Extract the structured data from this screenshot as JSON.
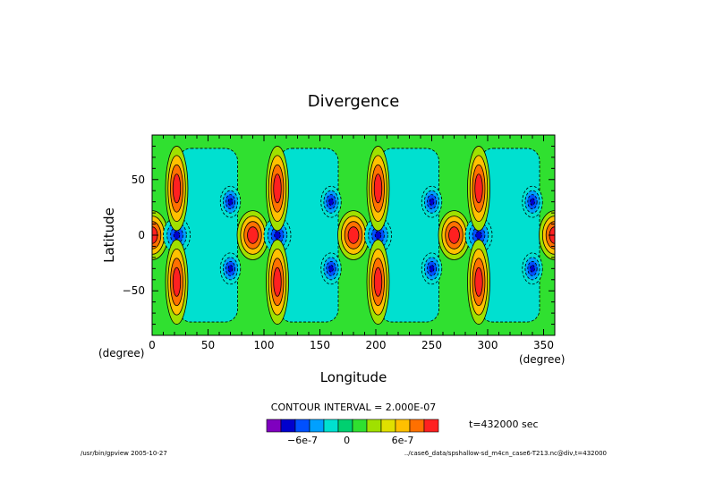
{
  "chart_data": {
    "type": "heatmap",
    "title": "Divergence",
    "xlabel": "Longitude",
    "ylabel": "Latitude",
    "x_unit_left": "(degree)",
    "x_unit_right": "(degree)",
    "xlim": [
      0,
      360
    ],
    "ylim": [
      -90,
      90
    ],
    "xticks": [
      "0",
      "50",
      "100",
      "150",
      "200",
      "250",
      "300",
      "350"
    ],
    "yticks": [
      "50",
      "0",
      "−50"
    ],
    "contour_interval_text": "CONTOUR INTERVAL = 2.000E-07",
    "time_text": "t=432000 sec",
    "colorbar": {
      "tick_labels": [
        "−6e-7",
        "0",
        "6e-7"
      ],
      "colors": [
        "#7f00bf",
        "#0000cd",
        "#0050ff",
        "#00a0ff",
        "#00e0d0",
        "#00d070",
        "#30e030",
        "#a0e000",
        "#e0e000",
        "#ffc000",
        "#ff7000",
        "#ff2020"
      ]
    },
    "field_colors": {
      "background": "#30e030",
      "positive_strong": "#ff2020",
      "positive_mid": "#ff7000",
      "positive_weak": "#ffc000",
      "positive_weakest": "#a0e000",
      "negative_weak": "#00e0d0",
      "negative_mid": "#00a0ff",
      "negative_strong": "#0050ff",
      "negative_strongest": "#0000cd"
    },
    "wave_period_deg": 90,
    "features": [
      {
        "name": "equatorial-max-1",
        "lon": 0,
        "lat": 0,
        "sign": "positive"
      },
      {
        "name": "equatorial-max-2",
        "lon": 90,
        "lat": 0,
        "sign": "positive"
      },
      {
        "name": "equatorial-max-3",
        "lon": 180,
        "lat": 0,
        "sign": "positive"
      },
      {
        "name": "equatorial-max-4",
        "lon": 270,
        "lat": 0,
        "sign": "positive"
      },
      {
        "name": "equatorial-max-5",
        "lon": 360,
        "lat": 0,
        "sign": "positive"
      },
      {
        "name": "equatorial-min-1",
        "lon": 22,
        "lat": 0,
        "sign": "negative"
      },
      {
        "name": "equatorial-min-2",
        "lon": 112,
        "lat": 0,
        "sign": "negative"
      },
      {
        "name": "equatorial-min-3",
        "lon": 202,
        "lat": 0,
        "sign": "negative"
      },
      {
        "name": "equatorial-min-4",
        "lon": 292,
        "lat": 0,
        "sign": "negative"
      },
      {
        "name": "midlat-max-n-1",
        "lon": 22,
        "lat": 42,
        "sign": "positive"
      },
      {
        "name": "midlat-max-n-2",
        "lon": 112,
        "lat": 42,
        "sign": "positive"
      },
      {
        "name": "midlat-max-n-3",
        "lon": 202,
        "lat": 42,
        "sign": "positive"
      },
      {
        "name": "midlat-max-n-4",
        "lon": 292,
        "lat": 42,
        "sign": "positive"
      },
      {
        "name": "midlat-max-s-1",
        "lon": 22,
        "lat": -42,
        "sign": "positive"
      },
      {
        "name": "midlat-max-s-2",
        "lon": 112,
        "lat": -42,
        "sign": "positive"
      },
      {
        "name": "midlat-max-s-3",
        "lon": 202,
        "lat": -42,
        "sign": "positive"
      },
      {
        "name": "midlat-max-s-4",
        "lon": 292,
        "lat": -42,
        "sign": "positive"
      },
      {
        "name": "midlat-min-n-1",
        "lon": 70,
        "lat": 30,
        "sign": "negative"
      },
      {
        "name": "midlat-min-n-2",
        "lon": 160,
        "lat": 30,
        "sign": "negative"
      },
      {
        "name": "midlat-min-n-3",
        "lon": 250,
        "lat": 30,
        "sign": "negative"
      },
      {
        "name": "midlat-min-n-4",
        "lon": 340,
        "lat": 30,
        "sign": "negative"
      },
      {
        "name": "midlat-min-s-1",
        "lon": 70,
        "lat": -30,
        "sign": "negative"
      },
      {
        "name": "midlat-min-s-2",
        "lon": 160,
        "lat": -30,
        "sign": "negative"
      },
      {
        "name": "midlat-min-s-3",
        "lon": 250,
        "lat": -30,
        "sign": "negative"
      },
      {
        "name": "midlat-min-s-4",
        "lon": 340,
        "lat": -30,
        "sign": "negative"
      }
    ]
  },
  "footer": {
    "left": "/usr/bin/gpview  2005-10-27",
    "right": "../case6_data/spshallow-sd_m4cn_case6-T213.nc@div,t=432000"
  }
}
